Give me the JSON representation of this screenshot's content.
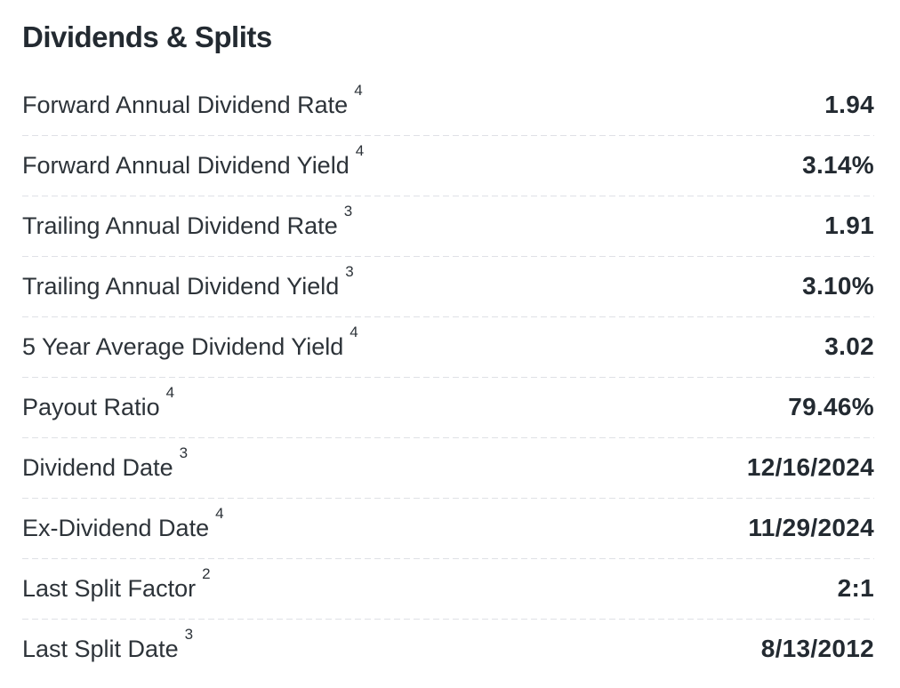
{
  "section": {
    "title": "Dividends & Splits"
  },
  "table": {
    "rows": [
      {
        "label": "Forward Annual Dividend Rate",
        "footnote": "4",
        "value": "1.94"
      },
      {
        "label": "Forward Annual Dividend Yield",
        "footnote": "4",
        "value": "3.14%"
      },
      {
        "label": "Trailing Annual Dividend Rate",
        "footnote": "3",
        "value": "1.91"
      },
      {
        "label": "Trailing Annual Dividend Yield",
        "footnote": "3",
        "value": "3.10%"
      },
      {
        "label": "5 Year Average Dividend Yield",
        "footnote": "4",
        "value": "3.02"
      },
      {
        "label": "Payout Ratio",
        "footnote": "4",
        "value": "79.46%"
      },
      {
        "label": "Dividend Date",
        "footnote": "3",
        "value": "12/16/2024"
      },
      {
        "label": "Ex-Dividend Date",
        "footnote": "4",
        "value": "11/29/2024"
      },
      {
        "label": "Last Split Factor",
        "footnote": "2",
        "value": "2:1"
      },
      {
        "label": "Last Split Date",
        "footnote": "3",
        "value": "8/13/2012"
      }
    ]
  }
}
